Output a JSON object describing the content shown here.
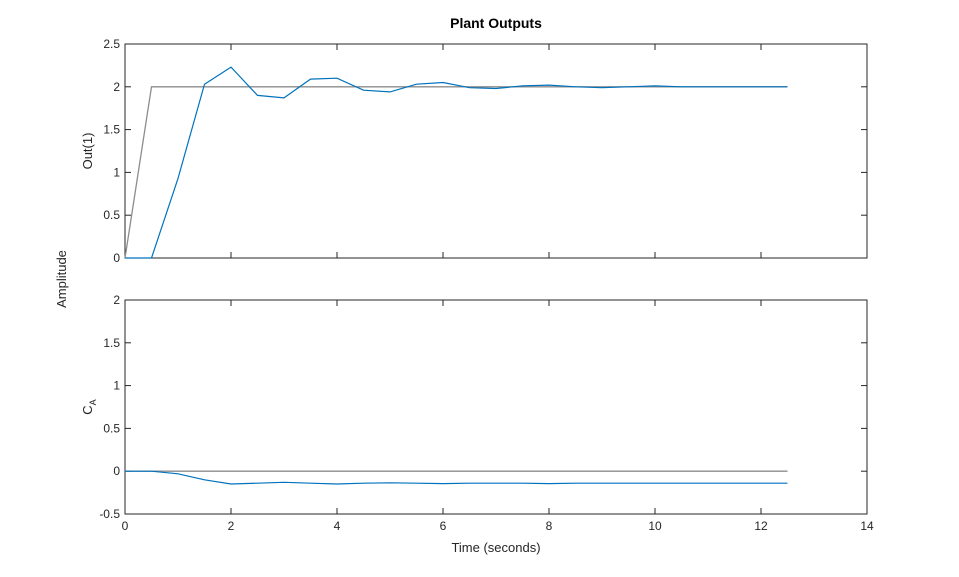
{
  "chart_data": {
    "type": "line",
    "title": "Plant Outputs",
    "xlabel": "Time (seconds)",
    "ylabel": "Amplitude",
    "xlim": [
      0,
      14
    ],
    "x_tick_labels": [
      "0",
      "2",
      "4",
      "6",
      "8",
      "10",
      "12",
      "14"
    ],
    "grid": false,
    "colors": {
      "reference": "#8c8c8c",
      "response": "#0072bd",
      "axes": "#262626"
    },
    "subplots": [
      {
        "ylabel": "Out(1)",
        "ylim": [
          0,
          2.5
        ],
        "y_tick_labels": [
          "0",
          "0.5",
          "1",
          "1.5",
          "2",
          "2.5"
        ],
        "series": [
          {
            "role": "reference",
            "x": [
              0,
              0.5,
              12.5
            ],
            "y": [
              0,
              2,
              2
            ]
          },
          {
            "role": "response",
            "x": [
              0,
              0.5,
              1,
              1.5,
              2,
              2.5,
              3,
              3.5,
              4,
              4.5,
              5,
              5.5,
              6,
              6.5,
              7,
              7.5,
              8,
              8.5,
              9,
              9.5,
              10,
              10.5,
              11,
              11.5,
              12,
              12.5
            ],
            "y": [
              0,
              0,
              0.93,
              2.03,
              2.23,
              1.9,
              1.87,
              2.09,
              2.1,
              1.96,
              1.94,
              2.03,
              2.05,
              1.99,
              1.98,
              2.01,
              2.02,
              2.0,
              1.99,
              2.0,
              2.01,
              2.0,
              2.0,
              2.0,
              2.0,
              2.0
            ]
          }
        ]
      },
      {
        "ylabel_main": "C",
        "ylabel_sub": "A",
        "ylim": [
          -0.5,
          2
        ],
        "y_tick_labels": [
          "-0.5",
          "0",
          "0.5",
          "1",
          "1.5",
          "2"
        ],
        "series": [
          {
            "role": "reference",
            "x": [
              0,
              12.5
            ],
            "y": [
              0,
              0
            ]
          },
          {
            "role": "response",
            "x": [
              0,
              0.5,
              1,
              1.5,
              2,
              2.5,
              3,
              3.5,
              4,
              4.5,
              5,
              5.5,
              6,
              6.5,
              7,
              7.5,
              8,
              8.5,
              9,
              9.5,
              10,
              10.5,
              11,
              11.5,
              12,
              12.5
            ],
            "y": [
              0,
              0,
              -0.03,
              -0.1,
              -0.15,
              -0.14,
              -0.13,
              -0.14,
              -0.15,
              -0.14,
              -0.135,
              -0.14,
              -0.145,
              -0.14,
              -0.14,
              -0.14,
              -0.145,
              -0.14,
              -0.14,
              -0.14,
              -0.14,
              -0.14,
              -0.14,
              -0.14,
              -0.14,
              -0.14
            ]
          }
        ]
      }
    ]
  }
}
